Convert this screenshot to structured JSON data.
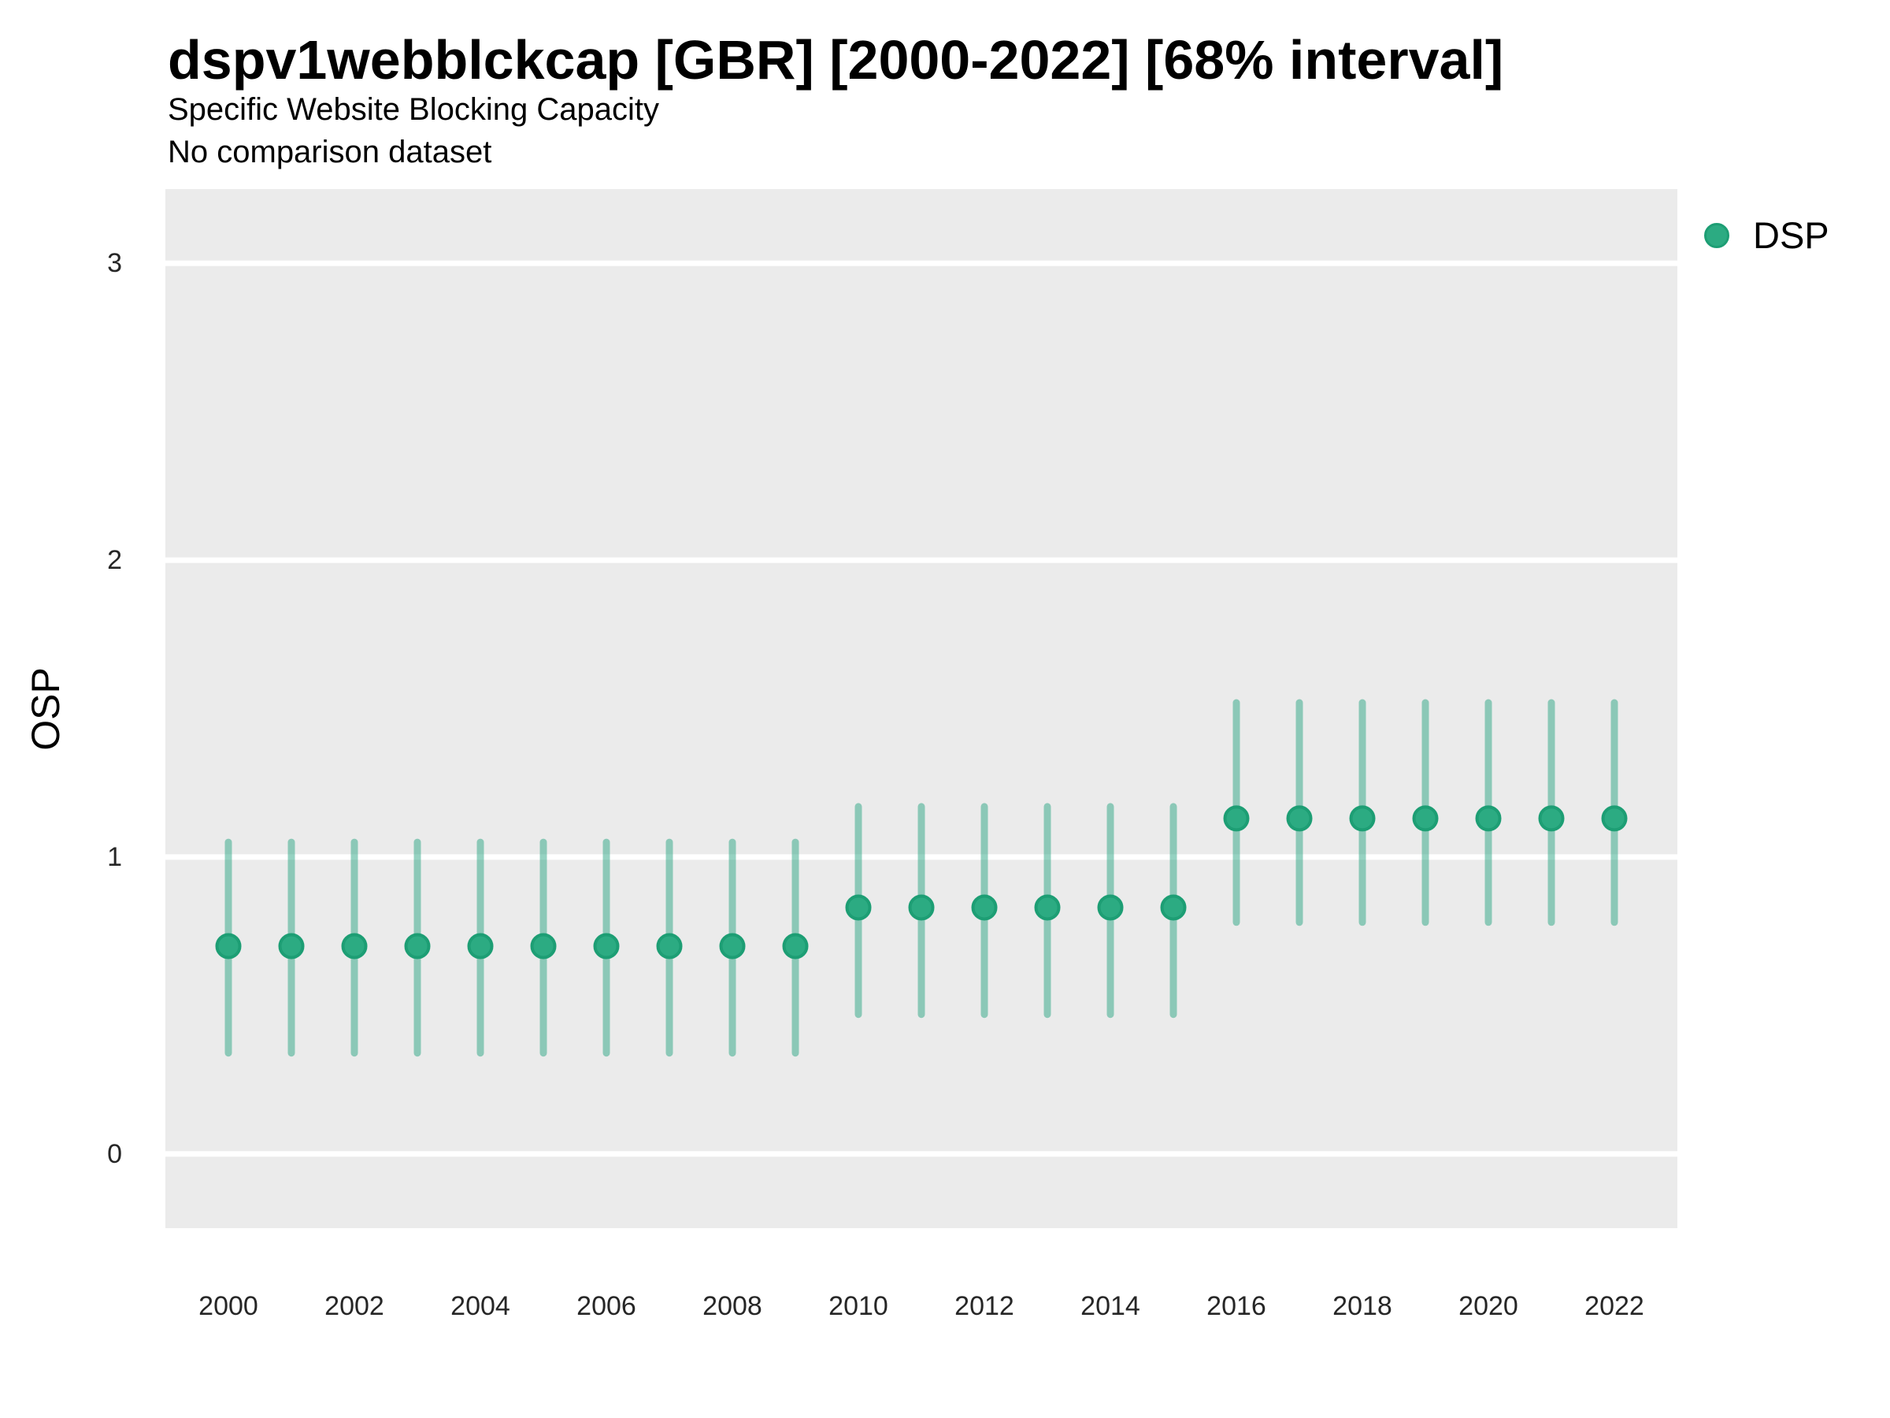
{
  "page": {
    "background": "#FFFFFF"
  },
  "header": {
    "title": "dspv1webblckcap [GBR] [2000-2022] [68% interval]",
    "subtitle": "Specific Website Blocking Capacity",
    "comparison_note": "No comparison dataset"
  },
  "axes": {
    "y_label": "OSP"
  },
  "legend": {
    "position": "right-top",
    "items": [
      {
        "label": "DSP",
        "color": "#2BA684"
      }
    ]
  },
  "chart_data": {
    "type": "scatter",
    "mark": "pointrange",
    "title": "dspv1webblckcap [GBR] [2000-2022] [68% interval]",
    "subtitle": "Specific Website Blocking Capacity",
    "note": "No comparison dataset",
    "xlabel": "",
    "ylabel": "OSP",
    "interval_level": "68%",
    "x": [
      2000,
      2001,
      2002,
      2003,
      2004,
      2005,
      2006,
      2007,
      2008,
      2009,
      2010,
      2011,
      2012,
      2013,
      2014,
      2015,
      2016,
      2017,
      2018,
      2019,
      2020,
      2021,
      2022
    ],
    "series": [
      {
        "name": "DSP",
        "estimate": [
          0.7,
          0.7,
          0.7,
          0.7,
          0.7,
          0.7,
          0.7,
          0.7,
          0.7,
          0.7,
          0.83,
          0.83,
          0.83,
          0.83,
          0.83,
          0.83,
          1.13,
          1.13,
          1.13,
          1.13,
          1.13,
          1.13,
          1.13
        ],
        "lower_68": [
          0.34,
          0.34,
          0.34,
          0.34,
          0.34,
          0.34,
          0.34,
          0.34,
          0.34,
          0.34,
          0.47,
          0.47,
          0.47,
          0.47,
          0.47,
          0.47,
          0.78,
          0.78,
          0.78,
          0.78,
          0.78,
          0.78,
          0.78
        ],
        "upper_68": [
          1.05,
          1.05,
          1.05,
          1.05,
          1.05,
          1.05,
          1.05,
          1.05,
          1.05,
          1.05,
          1.17,
          1.17,
          1.17,
          1.17,
          1.17,
          1.17,
          1.52,
          1.52,
          1.52,
          1.52,
          1.52,
          1.52,
          1.52
        ]
      }
    ],
    "xticks": [
      2000,
      2002,
      2004,
      2006,
      2008,
      2010,
      2012,
      2014,
      2016,
      2018,
      2020,
      2022
    ],
    "yticks": [
      0,
      1,
      2,
      3
    ],
    "xlim": [
      1999,
      2023
    ],
    "ylim": [
      -0.25,
      3.25
    ],
    "grid": "major-horizontal-only",
    "legend_position": "right-top",
    "colors": {
      "point": "#2CAB82",
      "point_stroke": "#1D9E74",
      "interval": "#2BA684",
      "interval_opacity": 0.5,
      "panel_bg": "#EBEBEB",
      "gridline": "#FFFFFF",
      "tick_label": "#262626"
    }
  }
}
